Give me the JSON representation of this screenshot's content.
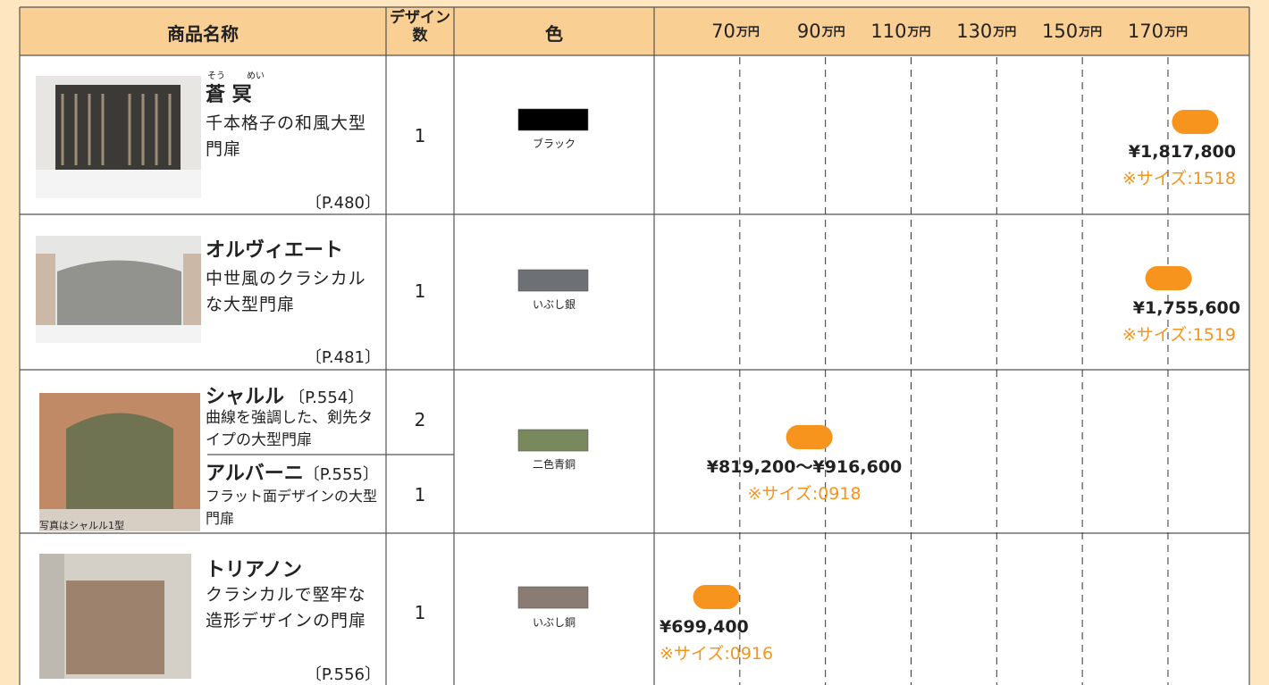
{
  "header": {
    "product": "商品名称",
    "designs": [
      "デザイン",
      "数"
    ],
    "color": "色"
  },
  "price_axis": {
    "unit": "万円",
    "ticks": [
      70,
      90,
      110,
      130,
      150,
      170
    ],
    "xlim": [
      50,
      189
    ]
  },
  "products": [
    {
      "name": "蒼 冥",
      "ruby": [
        "そう",
        "めい"
      ],
      "description": "千本格子の和風大型門扉",
      "page": "〔P.480〕",
      "designs": 1,
      "color_name": "ブラック",
      "color": "#000000",
      "price": 181.78,
      "price_label": "¥1,817,800",
      "size": "※サイズ:1518"
    },
    {
      "name": "オルヴィエート",
      "description": "中世風のクラシカルな大型門扉",
      "page": "〔P.481〕",
      "designs": 1,
      "color_name": "いぶし銀",
      "color": "#6d7075",
      "price": 175.56,
      "price_label": "¥1,755,600",
      "size": "※サイズ:1519"
    },
    {
      "items": [
        {
          "name": "シャルル",
          "page": "〔P.554〕",
          "description": "曲線を強調した、剣先タイプの大型門扉",
          "designs": 2
        },
        {
          "name": "アルバーニ",
          "page": "〔P.555〕",
          "description": "フラット面デザインの大型門扉",
          "designs": 1
        }
      ],
      "caption": "写真はシャルル1型",
      "color_name": "二色青銅",
      "color": "#7a885e",
      "price": [
        81.92,
        91.66
      ],
      "price_label": "¥819,200〜¥916,600",
      "size": "※サイズ:0918"
    },
    {
      "name": "トリアノン",
      "description": "クラシカルで堅牢な造形デザインの門扉",
      "page": "〔P.556〕",
      "designs": 1,
      "color_name": "いぶし銅",
      "color": "#8a7b73",
      "price": 69.94,
      "price_label": "¥699,400",
      "size": "※サイズ:0916"
    }
  ]
}
